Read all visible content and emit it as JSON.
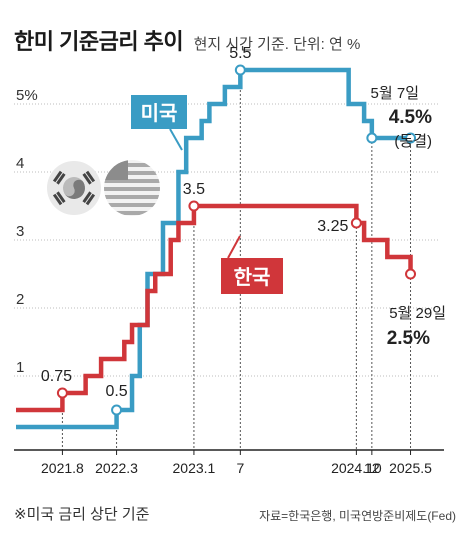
{
  "title": "한미 기준금리 추이",
  "subtitle": "현지 시간 기준. 단위: 연 %",
  "footnote": "※미국 금리 상단 기준",
  "source": "자료=한국은행, 미국연방준비제도(Fed)",
  "colors": {
    "us": "#3a9cc4",
    "kr": "#d0363a",
    "axis": "#222222",
    "leader": "#555555"
  },
  "flags": [
    "korea-flag-icon",
    "usa-flag-icon"
  ],
  "chart_data": {
    "type": "line",
    "ylim": [
      0,
      5.5
    ],
    "yticks": [
      1,
      2,
      3,
      4,
      5
    ],
    "ytick_labels": [
      "1",
      "2",
      "3",
      "4",
      "5%"
    ],
    "xlim": [
      "2021-02",
      "2025-07"
    ],
    "xticks": [
      {
        "x": "2021-08",
        "label": "2021.8"
      },
      {
        "x": "2022-03",
        "label": "2022.3"
      },
      {
        "x": "2023-01",
        "label": "2023.1"
      },
      {
        "x": "2023-07",
        "label": "7"
      },
      {
        "x": "2024-10",
        "label": "2024.10"
      },
      {
        "x": "2024-12",
        "label": "12"
      },
      {
        "x": "2025-05",
        "label": "2025.5"
      }
    ],
    "series": [
      {
        "name": "미국",
        "key": "us",
        "steps": [
          [
            "2021-02",
            0.25
          ],
          [
            "2022-03",
            0.5
          ],
          [
            "2022-05",
            1.0
          ],
          [
            "2022-06",
            1.75
          ],
          [
            "2022-07",
            2.5
          ],
          [
            "2022-09",
            3.25
          ],
          [
            "2022-11",
            4.0
          ],
          [
            "2022-12",
            4.5
          ],
          [
            "2023-02",
            4.75
          ],
          [
            "2023-03",
            5.0
          ],
          [
            "2023-05",
            5.25
          ],
          [
            "2023-07",
            5.5
          ],
          [
            "2024-09",
            5.0
          ],
          [
            "2024-11",
            4.75
          ],
          [
            "2024-12",
            4.5
          ],
          [
            "2025-05",
            4.5
          ]
        ],
        "markers": [
          {
            "x": "2022-03",
            "y": 0.5,
            "label": "0.5"
          },
          {
            "x": "2023-07",
            "y": 5.5,
            "label": "5.5"
          },
          {
            "x": "2024-12",
            "y": 4.5
          },
          {
            "x": "2025-05",
            "y": 4.5
          }
        ],
        "end_annotation": {
          "date": "5월 7일",
          "value": "4.5%",
          "note": "(동결)"
        }
      },
      {
        "name": "한국",
        "key": "kr",
        "steps": [
          [
            "2021-02",
            0.5
          ],
          [
            "2021-08",
            0.75
          ],
          [
            "2021-11",
            1.0
          ],
          [
            "2022-01",
            1.25
          ],
          [
            "2022-04",
            1.5
          ],
          [
            "2022-05",
            1.75
          ],
          [
            "2022-07",
            2.25
          ],
          [
            "2022-08",
            2.5
          ],
          [
            "2022-10",
            3.0
          ],
          [
            "2022-11",
            3.25
          ],
          [
            "2023-01",
            3.5
          ],
          [
            "2024-10",
            3.25
          ],
          [
            "2024-11",
            3.0
          ],
          [
            "2025-02",
            2.75
          ],
          [
            "2025-05",
            2.5
          ]
        ],
        "markers": [
          {
            "x": "2021-08",
            "y": 0.75,
            "label": "0.75"
          },
          {
            "x": "2023-01",
            "y": 3.5,
            "label": "3.5"
          },
          {
            "x": "2024-10",
            "y": 3.25,
            "label": "3.25"
          },
          {
            "x": "2025-05",
            "y": 2.5
          }
        ],
        "end_annotation": {
          "date": "5월 29일",
          "value": "2.5%"
        }
      }
    ]
  }
}
